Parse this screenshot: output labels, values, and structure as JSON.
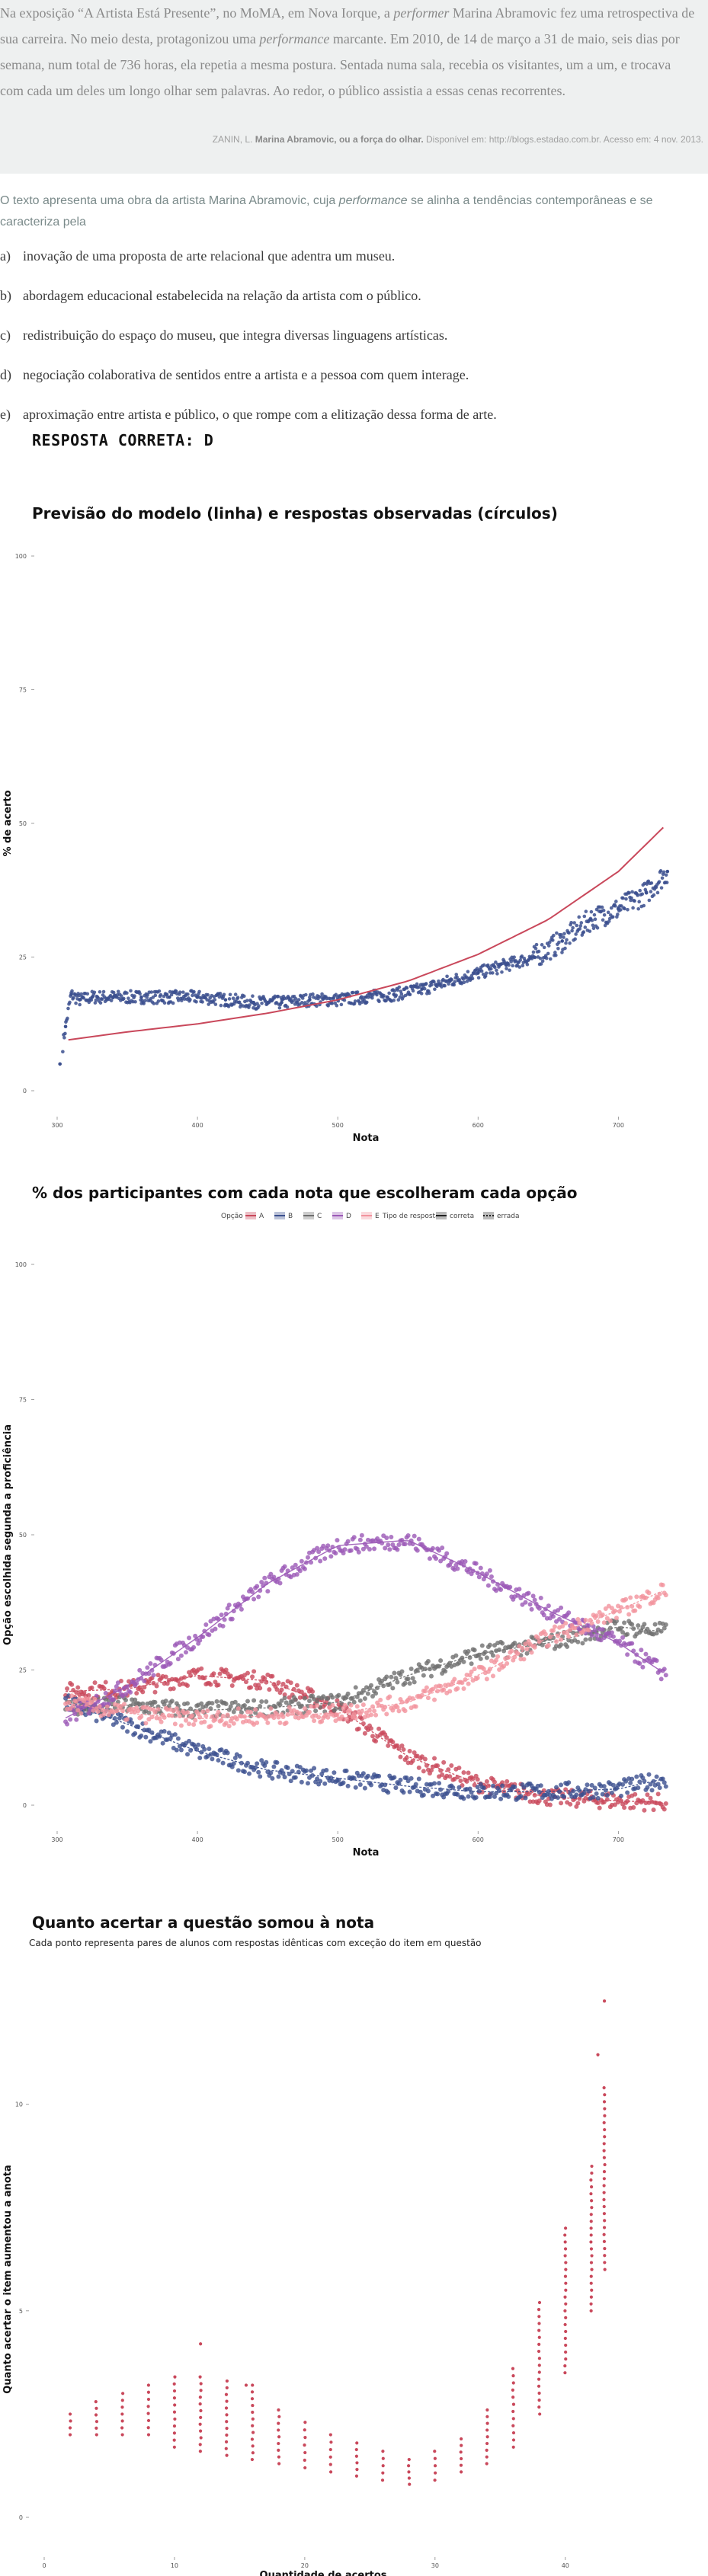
{
  "quote": {
    "part1": "Na exposição “A Artista Está Presente”, no MoMA, em Nova Iorque, a ",
    "em1": "performer",
    "part2": " Marina Abramovic fez uma retrospectiva de sua carreira. No meio desta, protagonizou uma ",
    "em2": "performance",
    "part3": " marcante. Em 2010, de 14 de março a 31 de maio, seis dias por semana, num total de 736 horas, ela repetia a mesma postura. Sentada numa sala, recebia os visitantes, um a um, e trocava com cada um deles um longo olhar sem palavras. Ao redor, o público assistia a essas cenas recorrentes."
  },
  "source": {
    "author": "ZANIN, L.",
    "title": "Marina Abramovic, ou a força do olhar.",
    "rest": "Disponível em: http://blogs.estadao.com.br. Acesso em: 4 nov. 2013."
  },
  "question": {
    "part1": "O texto apresenta uma obra da artista Marina Abramovic, cuja ",
    "em": "performance",
    "part2": " se alinha a tendências contemporâneas e se caracteriza pela"
  },
  "alternatives": [
    {
      "letter": "a)",
      "text": "inovação de uma proposta de arte relacional que adentra um museu."
    },
    {
      "letter": "b)",
      "text": "abordagem educacional estabelecida na relação da artista com o público."
    },
    {
      "letter": "c)",
      "text": "redistribuição do espaço do museu, que integra diversas linguagens artísticas."
    },
    {
      "letter": "d)",
      "text": "negociação colaborativa de sentidos entre a artista e a pessoa com quem interage."
    },
    {
      "letter": "e)",
      "text": "aproximação entre artista e público, o que rompe com a elitização dessa forma de arte."
    }
  ],
  "answer": "RESPOSTA CORRETA: D",
  "colors": {
    "blue": "#3b4f8e",
    "red": "#c9485b",
    "purple": "#9b59b6",
    "pink": "#f2939e",
    "gray": "#6f6f6f"
  },
  "chart_data": [
    {
      "type": "scatter",
      "title": "Previsão do modelo (linha) e respostas observadas (círculos)",
      "xlabel": "Nota",
      "ylabel": "% de acerto",
      "xlim": [
        300,
        740
      ],
      "ylim": [
        0,
        100
      ],
      "x_ticks": [
        300,
        400,
        500,
        600,
        700
      ],
      "y_ticks": [
        0,
        25,
        50,
        75,
        100
      ],
      "observed": {
        "x": [
          302,
          306,
          310,
          316,
          325,
          340,
          360,
          380,
          400,
          420,
          440,
          460,
          480,
          500,
          520,
          540,
          560,
          580,
          600,
          620,
          640,
          660,
          680,
          700,
          720,
          735
        ],
        "y": [
          5,
          12,
          18,
          17,
          17.5,
          17.5,
          17.5,
          17.5,
          17.5,
          17,
          16.5,
          16.5,
          17,
          17,
          17.5,
          18,
          19,
          20.5,
          22,
          23.5,
          25,
          28,
          32,
          34,
          37,
          41
        ]
      },
      "model": {
        "x": [
          308,
          350,
          400,
          450,
          500,
          550,
          600,
          650,
          700,
          735
        ],
        "y": [
          9.5,
          11,
          12.5,
          14.5,
          17,
          20.5,
          25.5,
          32,
          41,
          50
        ]
      }
    },
    {
      "type": "line",
      "title": "% dos participantes com cada nota que escolheram cada opção",
      "xlabel": "Nota",
      "ylabel": "Opção escolhida segunda a proficiência",
      "xlim": [
        300,
        740
      ],
      "ylim": [
        0,
        100
      ],
      "x_ticks": [
        300,
        400,
        500,
        600,
        700
      ],
      "y_ticks": [
        0,
        25,
        50,
        75,
        100
      ],
      "legend": {
        "option_title": "Opção",
        "options": [
          "A",
          "B",
          "C",
          "D",
          "E"
        ],
        "type_title": "Tipo de resposta",
        "types": [
          "correta",
          "errada"
        ]
      },
      "x": [
        305,
        350,
        400,
        450,
        500,
        550,
        600,
        650,
        700,
        735
      ],
      "series": [
        {
          "name": "A",
          "values": [
            21,
            21.5,
            24,
            23,
            18,
            9,
            4,
            1.5,
            0.8,
            0.5
          ]
        },
        {
          "name": "B",
          "values": [
            19,
            15,
            10,
            6.5,
            5,
            3.5,
            2.5,
            2.5,
            3,
            5
          ]
        },
        {
          "name": "C",
          "values": [
            18,
            18.5,
            17.5,
            18,
            19,
            24,
            28,
            30,
            33,
            32
          ]
        },
        {
          "name": "D",
          "values": [
            16,
            22,
            31,
            41,
            48,
            49,
            43,
            36,
            30,
            24
          ]
        },
        {
          "name": "E",
          "values": [
            19,
            17,
            16,
            16.5,
            17,
            19,
            24,
            31,
            36,
            40
          ]
        }
      ]
    },
    {
      "type": "scatter",
      "title": "Quanto acertar a questão somou à nota",
      "subtitle": "Cada ponto representa pares de alunos com respostas idênticas com exceção do item em questão",
      "xlabel": "Quantidade de acertos",
      "ylabel": "Quanto acertar o item aumentou a anota",
      "xlim": [
        0,
        95
      ],
      "ylim": [
        0,
        13
      ],
      "x_ticks": [
        0,
        10,
        20,
        30,
        40
      ],
      "x_ticks_note": "tick labels as printed at 0, 20, 40, 60, 80 positions",
      "y_ticks": [
        0,
        5,
        10
      ],
      "clusters": [
        {
          "x": 4,
          "y_min": 2.0,
          "y_max": 2.5
        },
        {
          "x": 8,
          "y_min": 2.0,
          "y_max": 2.8
        },
        {
          "x": 12,
          "y_min": 2.0,
          "y_max": 3.0
        },
        {
          "x": 16,
          "y_min": 2.0,
          "y_max": 3.2
        },
        {
          "x": 20,
          "y_min": 1.7,
          "y_max": 3.4
        },
        {
          "x": 24,
          "y_min": 1.6,
          "y_max": 3.4
        },
        {
          "x": 28,
          "y_min": 1.5,
          "y_max": 3.3
        },
        {
          "x": 32,
          "y_min": 1.4,
          "y_max": 3.2
        },
        {
          "x": 36,
          "y_min": 1.3,
          "y_max": 2.6
        },
        {
          "x": 40,
          "y_min": 1.2,
          "y_max": 2.3
        },
        {
          "x": 44,
          "y_min": 1.1,
          "y_max": 2.0
        },
        {
          "x": 48,
          "y_min": 1.0,
          "y_max": 1.8
        },
        {
          "x": 52,
          "y_min": 0.9,
          "y_max": 1.6
        },
        {
          "x": 56,
          "y_min": 0.8,
          "y_max": 1.4
        },
        {
          "x": 60,
          "y_min": 0.9,
          "y_max": 1.6
        },
        {
          "x": 64,
          "y_min": 1.1,
          "y_max": 1.9
        },
        {
          "x": 68,
          "y_min": 1.3,
          "y_max": 2.6
        },
        {
          "x": 72,
          "y_min": 1.7,
          "y_max": 3.6
        },
        {
          "x": 76,
          "y_min": 2.5,
          "y_max": 5.2
        },
        {
          "x": 80,
          "y_min": 3.5,
          "y_max": 7.0
        },
        {
          "x": 84,
          "y_min": 5.0,
          "y_max": 8.5
        },
        {
          "x": 86,
          "y_min": 6.0,
          "y_max": 10.4
        }
      ],
      "outliers": [
        {
          "x": 86,
          "y": 12.5
        },
        {
          "x": 85,
          "y": 11.2
        },
        {
          "x": 24,
          "y": 4.2
        },
        {
          "x": 31,
          "y": 3.2
        }
      ]
    }
  ]
}
